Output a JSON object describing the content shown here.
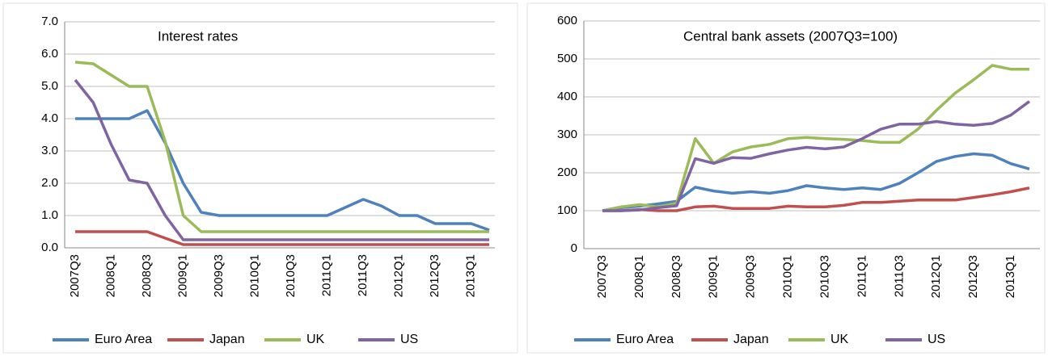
{
  "chart_data": [
    {
      "type": "line",
      "title": "Interest rates",
      "categories": [
        "2007Q3",
        null,
        "2008Q1",
        null,
        "2008Q3",
        null,
        "2009Q1",
        null,
        "2009Q3",
        null,
        "2010Q1",
        null,
        "2010Q3",
        null,
        "2011Q1",
        null,
        "2011Q3",
        null,
        "2012Q1",
        null,
        "2012Q3",
        null,
        "2013Q1",
        null
      ],
      "series": [
        {
          "name": "Euro Area",
          "color": "#4f81bd",
          "values": [
            4.0,
            4.0,
            4.0,
            4.0,
            4.25,
            3.25,
            2.0,
            1.1,
            1.0,
            1.0,
            1.0,
            1.0,
            1.0,
            1.0,
            1.0,
            1.25,
            1.5,
            1.3,
            1.0,
            1.0,
            0.75,
            0.75,
            0.75,
            0.55
          ]
        },
        {
          "name": "Japan",
          "color": "#c0504d",
          "values": [
            0.5,
            0.5,
            0.5,
            0.5,
            0.5,
            0.3,
            0.1,
            0.1,
            0.1,
            0.1,
            0.1,
            0.1,
            0.1,
            0.1,
            0.1,
            0.1,
            0.1,
            0.1,
            0.1,
            0.1,
            0.1,
            0.1,
            0.1,
            0.1
          ]
        },
        {
          "name": "UK",
          "color": "#9bbb59",
          "values": [
            5.75,
            5.7,
            5.35,
            5.0,
            5.0,
            3.3,
            1.0,
            0.5,
            0.5,
            0.5,
            0.5,
            0.5,
            0.5,
            0.5,
            0.5,
            0.5,
            0.5,
            0.5,
            0.5,
            0.5,
            0.5,
            0.5,
            0.5,
            0.5
          ]
        },
        {
          "name": "US",
          "color": "#8064a2",
          "values": [
            5.2,
            4.5,
            3.2,
            2.1,
            2.0,
            1.0,
            0.25,
            0.25,
            0.25,
            0.25,
            0.25,
            0.25,
            0.25,
            0.25,
            0.25,
            0.25,
            0.25,
            0.25,
            0.25,
            0.25,
            0.25,
            0.25,
            0.25,
            0.25
          ]
        }
      ],
      "ylim": [
        0,
        7
      ],
      "yticks": [
        {
          "value": 0,
          "label": "0.0"
        },
        {
          "value": 1,
          "label": "1.0"
        },
        {
          "value": 2,
          "label": "2.0"
        },
        {
          "value": 3,
          "label": "3.0"
        },
        {
          "value": 4,
          "label": "4.0"
        },
        {
          "value": 5,
          "label": "5.0"
        },
        {
          "value": 6,
          "label": "6.0"
        },
        {
          "value": 7,
          "label": "7.0"
        }
      ],
      "grid": true
    },
    {
      "type": "line",
      "title": "Central bank assets (2007Q3=100)",
      "categories": [
        "2007Q3",
        null,
        "2008Q1",
        null,
        "2008Q3",
        null,
        "2009Q1",
        null,
        "2009Q3",
        null,
        "2010Q1",
        null,
        "2010Q3",
        null,
        "2011Q1",
        null,
        "2011Q3",
        null,
        "2012Q1",
        null,
        "2012Q3",
        null,
        "2013Q1",
        null
      ],
      "series": [
        {
          "name": "Euro Area",
          "color": "#4f81bd",
          "values": [
            100,
            108,
            112,
            118,
            125,
            162,
            152,
            146,
            150,
            146,
            153,
            166,
            160,
            156,
            160,
            156,
            172,
            200,
            230,
            243,
            250,
            246,
            224,
            210
          ]
        },
        {
          "name": "Japan",
          "color": "#c0504d",
          "values": [
            100,
            100,
            103,
            100,
            100,
            110,
            112,
            106,
            106,
            106,
            112,
            110,
            110,
            114,
            122,
            122,
            125,
            128,
            128,
            128,
            135,
            142,
            150,
            160
          ]
        },
        {
          "name": "UK",
          "color": "#9bbb59",
          "values": [
            100,
            110,
            116,
            110,
            120,
            290,
            225,
            255,
            268,
            275,
            290,
            293,
            290,
            288,
            285,
            280,
            280,
            315,
            365,
            410,
            445,
            483,
            473,
            473
          ]
        },
        {
          "name": "US",
          "color": "#8064a2",
          "values": [
            100,
            100,
            102,
            108,
            113,
            237,
            225,
            240,
            238,
            250,
            260,
            267,
            263,
            268,
            290,
            315,
            328,
            328,
            335,
            328,
            325,
            330,
            352,
            388
          ]
        }
      ],
      "ylim": [
        0,
        600
      ],
      "yticks": [
        0,
        100,
        200,
        300,
        400,
        500,
        600
      ],
      "grid": true
    }
  ]
}
